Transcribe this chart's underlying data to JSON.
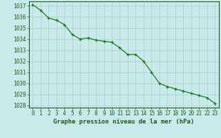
{
  "x": [
    0,
    1,
    2,
    3,
    4,
    5,
    6,
    7,
    8,
    9,
    10,
    11,
    12,
    13,
    14,
    15,
    16,
    17,
    18,
    19,
    20,
    21,
    22,
    23
  ],
  "y": [
    1037.1,
    1036.6,
    1035.9,
    1035.7,
    1035.3,
    1034.4,
    1034.0,
    1034.1,
    1033.9,
    1033.8,
    1033.7,
    1033.2,
    1032.6,
    1032.6,
    1032.0,
    1031.0,
    1030.0,
    1029.7,
    1029.5,
    1029.3,
    1029.1,
    1028.9,
    1028.7,
    1028.2
  ],
  "ylim": [
    1027.8,
    1037.4
  ],
  "xlim": [
    -0.5,
    23.5
  ],
  "yticks": [
    1028,
    1029,
    1030,
    1031,
    1032,
    1033,
    1034,
    1035,
    1036,
    1037
  ],
  "xticks": [
    0,
    1,
    2,
    3,
    4,
    5,
    6,
    7,
    8,
    9,
    10,
    11,
    12,
    13,
    14,
    15,
    16,
    17,
    18,
    19,
    20,
    21,
    22,
    23
  ],
  "xlabel": "Graphe pression niveau de la mer (hPa)",
  "line_color": "#1a7a1a",
  "marker": "+",
  "bg_color": "#c8eaea",
  "grid_color": "#b0cccc",
  "text_color": "#1a5c1a",
  "xlabel_fontsize": 6.5,
  "tick_fontsize": 5.5
}
